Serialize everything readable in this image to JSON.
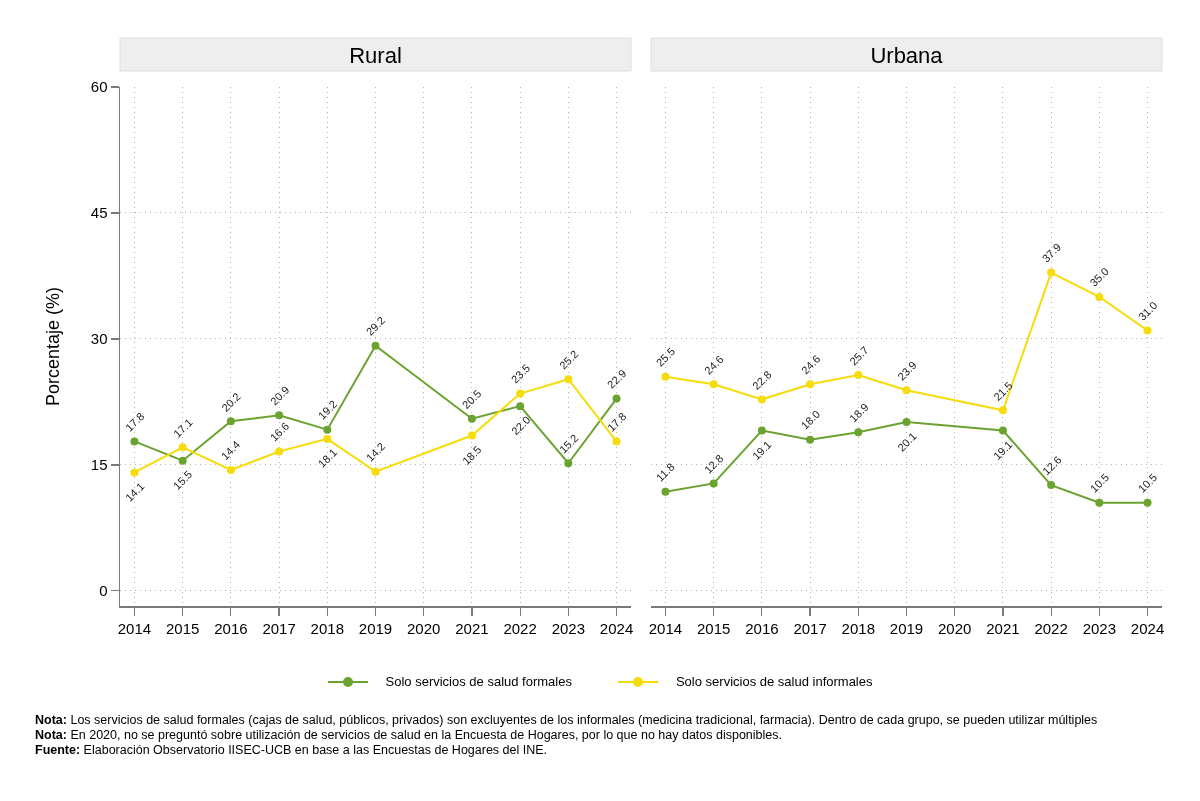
{
  "chart_data": [
    {
      "type": "line",
      "title": "Rural",
      "ylabel": "Porcentaje (%)",
      "x": [
        2014,
        2015,
        2016,
        2017,
        2018,
        2019,
        2021,
        2022,
        2023,
        2024
      ],
      "xlim": [
        2013.7,
        2024.3
      ],
      "xticks": [
        2014,
        2015,
        2016,
        2017,
        2018,
        2019,
        2020,
        2021,
        2022,
        2023,
        2024
      ],
      "ylim": [
        -1.8,
        60
      ],
      "yticks": [
        0,
        15,
        30,
        45,
        60
      ],
      "grid": true,
      "marker": "circle",
      "line_style": "solid",
      "legend": "bottom",
      "series": [
        {
          "name": "Solo servicios de salud formales",
          "color": "#6ba330",
          "values": [
            17.8,
            15.5,
            20.2,
            20.9,
            19.2,
            29.2,
            20.5,
            22.0,
            15.2,
            22.9
          ],
          "value_labels": [
            "17.8",
            "15.5",
            "20.2",
            "20.9",
            "19.2",
            "29.2",
            "20.5",
            "22.0",
            "15.2",
            "22.9"
          ]
        },
        {
          "name": "Solo servicios de salud informales",
          "color": "#f5dc0a",
          "values": [
            14.1,
            17.1,
            14.4,
            16.6,
            18.1,
            14.2,
            18.5,
            23.5,
            25.2,
            17.8
          ],
          "value_labels": [
            "14.1",
            "17.1",
            "14.4",
            "16.6",
            "18.1",
            "14.2",
            "18.5",
            "23.5",
            "25.2",
            "17.8"
          ]
        }
      ]
    },
    {
      "type": "line",
      "title": "Urbana",
      "x": [
        2014,
        2015,
        2016,
        2017,
        2018,
        2019,
        2021,
        2022,
        2023,
        2024
      ],
      "xlim": [
        2013.7,
        2024.3
      ],
      "xticks": [
        2014,
        2015,
        2016,
        2017,
        2018,
        2019,
        2020,
        2021,
        2022,
        2023,
        2024
      ],
      "ylim": [
        -1.8,
        60
      ],
      "yticks": [
        0,
        15,
        30,
        45,
        60
      ],
      "grid": true,
      "marker": "circle",
      "line_style": "solid",
      "tick_labels": "x",
      "series": [
        {
          "color": "#6ba330",
          "values": [
            11.8,
            12.8,
            19.1,
            18.0,
            18.9,
            20.1,
            19.1,
            12.6,
            10.5,
            10.5
          ],
          "value_labels": [
            "11.8",
            "12.8",
            "19.1",
            "18.0",
            "18.9",
            "20.1",
            "19.1",
            "12.6",
            "10.5",
            "10.5"
          ]
        },
        {
          "color": "#f5dc0a",
          "values": [
            25.5,
            24.6,
            22.8,
            24.6,
            25.7,
            23.9,
            21.5,
            37.9,
            35.0,
            31.0
          ],
          "value_labels": [
            "25.5",
            "24.6",
            "22.8",
            "24.6",
            "25.7",
            "23.9",
            "21.5",
            "37.9",
            "35.0",
            "31.0"
          ]
        }
      ],
      "annotations": [
        "Nota: Los servicios de salud formales (cajas de salud, públicos, privados) son excluyentes de los informales (medicina tradicional, farmacia). Dentro de cada grupo, se pueden utilizar múltiples",
        "Nota: En 2020, no se preguntó sobre utilización de servicios de salud en la Encuesta de Hogares, por lo que no hay datos disponibles.",
        "Fuente: Elaboración Observatorio IISEC-UCB en base a las Encuestas de Hogares del INE."
      ]
    }
  ]
}
